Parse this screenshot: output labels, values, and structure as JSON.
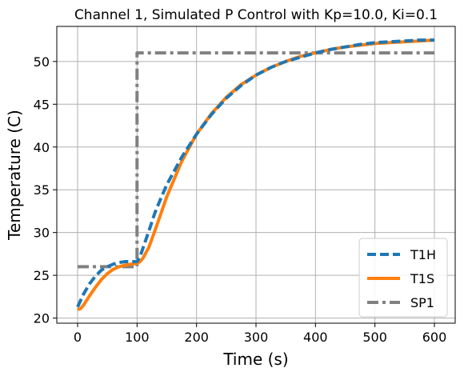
{
  "chart_data": {
    "type": "line",
    "title": "Channel 1, Simulated P Control with Kp=10.0, Ki=0.1",
    "xlabel": "Time (s)",
    "ylabel": "Temperature (C)",
    "xlim": [
      -35,
      635
    ],
    "ylim": [
      19.4,
      54.1
    ],
    "xticks": [
      0,
      100,
      200,
      300,
      400,
      500,
      600
    ],
    "yticks": [
      20,
      25,
      30,
      35,
      40,
      45,
      50
    ],
    "grid": true,
    "legend_position": "lower-right",
    "series": [
      {
        "name": "T1H",
        "color": "#1f77b4",
        "style": "dashed",
        "x": [
          0,
          10,
          20,
          30,
          40,
          50,
          60,
          70,
          80,
          90,
          100,
          105,
          110,
          120,
          130,
          140,
          150,
          175,
          200,
          225,
          250,
          275,
          300,
          325,
          350,
          375,
          400,
          425,
          450,
          475,
          500,
          525,
          550,
          575,
          600
        ],
        "y": [
          21.3,
          22.8,
          24.0,
          24.9,
          25.6,
          26.0,
          26.3,
          26.5,
          26.6,
          26.6,
          26.6,
          27.2,
          28.2,
          30.2,
          32.3,
          34.0,
          35.6,
          38.8,
          41.5,
          43.8,
          45.7,
          47.2,
          48.4,
          49.3,
          50.0,
          50.5,
          51.0,
          51.4,
          51.7,
          52.0,
          52.2,
          52.3,
          52.4,
          52.5,
          52.5
        ]
      },
      {
        "name": "T1S",
        "color": "#ff7f0e",
        "style": "solid",
        "x": [
          0,
          5,
          10,
          20,
          30,
          40,
          50,
          60,
          70,
          80,
          90,
          100,
          105,
          110,
          120,
          130,
          140,
          150,
          175,
          200,
          225,
          250,
          275,
          300,
          325,
          350,
          375,
          400,
          425,
          450,
          475,
          500,
          525,
          550,
          575,
          600
        ],
        "y": [
          21.0,
          21.1,
          21.5,
          22.6,
          23.6,
          24.5,
          25.2,
          25.7,
          26.0,
          26.2,
          26.3,
          26.4,
          26.6,
          27.0,
          28.3,
          30.2,
          32.2,
          34.2,
          38.3,
          41.5,
          43.9,
          45.8,
          47.3,
          48.4,
          49.3,
          50.0,
          50.6,
          51.0,
          51.4,
          51.7,
          51.9,
          52.1,
          52.2,
          52.3,
          52.4,
          52.5
        ]
      },
      {
        "name": "SP1",
        "color": "#808080",
        "style": "dashdot",
        "x": [
          0,
          100,
          100,
          600
        ],
        "y": [
          26,
          26,
          51,
          51
        ]
      }
    ]
  }
}
